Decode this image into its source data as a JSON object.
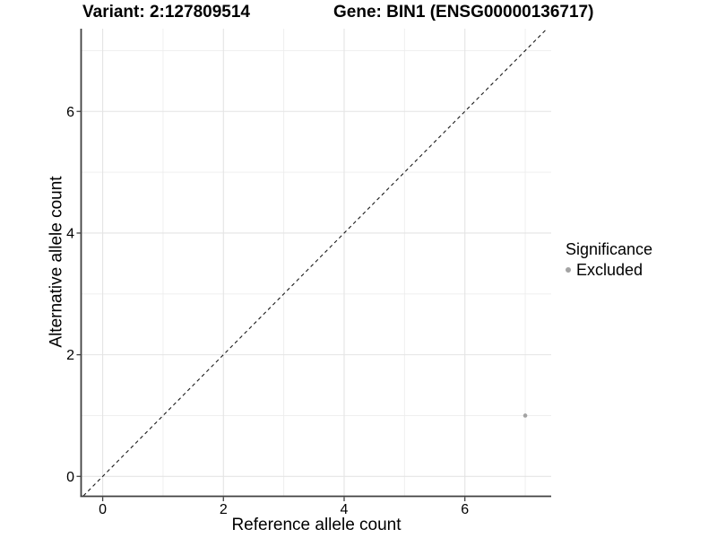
{
  "header": {
    "variant_title": "Variant: 2:127809514",
    "gene_title": "Gene: BIN1 (ENSG00000136717)"
  },
  "chart_data": {
    "type": "scatter",
    "title": "Variant: 2:127809514 | Gene: BIN1 (ENSG00000136717)",
    "xlabel": "Reference allele count",
    "ylabel": "Alternative allele count",
    "xlim": [
      -0.35,
      7.43
    ],
    "ylim": [
      -0.32,
      7.36
    ],
    "x_ticks": [
      0,
      2,
      4,
      6
    ],
    "y_ticks": [
      0,
      2,
      4,
      6
    ],
    "x_gridlines_major": [
      0,
      2,
      4,
      6
    ],
    "x_gridlines_minor": [
      1,
      3,
      5,
      7
    ],
    "y_gridlines_major": [
      0,
      2,
      4,
      6
    ],
    "y_gridlines_minor": [
      1,
      3,
      5,
      7
    ],
    "grid": true,
    "legend_position": "right",
    "series": [
      {
        "name": "Excluded",
        "color": "#a3a3a3",
        "points": [
          {
            "x": 7,
            "y": 1
          }
        ]
      }
    ],
    "reference_line": {
      "description": "identity line y = x",
      "slope": 1,
      "intercept": 0,
      "style": "dashed",
      "color": "#1a1a1a"
    },
    "legend": {
      "title": "Significance",
      "entries": [
        {
          "label": "Excluded",
          "color": "#a3a3a3"
        }
      ]
    }
  },
  "colors": {
    "background": "#ffffff",
    "axis_line": "#404040",
    "tick_mark": "#404040",
    "grid_major": "#e4e4e4",
    "grid_minor": "#ededed",
    "text": "#000000",
    "point": "#a3a3a3"
  }
}
